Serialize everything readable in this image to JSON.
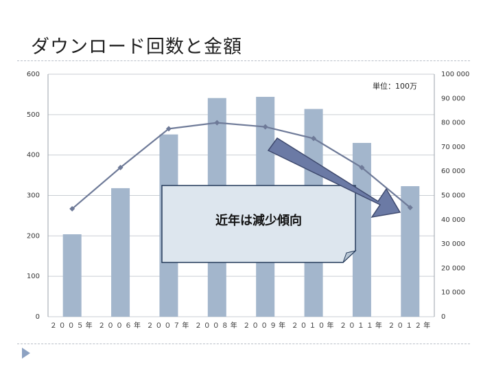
{
  "slide": {
    "title": "ダウンロード回数と金額"
  },
  "chart_data": {
    "type": "bar",
    "categories": [
      "２００５年",
      "２００６年",
      "２００７年",
      "２００８年",
      "２００９年",
      "２０１０年",
      "２０１１年",
      "２０１２年"
    ],
    "series": [
      {
        "type": "bar",
        "axis": "left",
        "values": [
          204,
          318,
          451,
          541,
          544,
          514,
          430,
          323
        ],
        "color": "#a3b6cc"
      },
      {
        "type": "line",
        "axis": "right",
        "values": [
          44500,
          61500,
          77500,
          80000,
          78300,
          73500,
          61500,
          45000
        ],
        "color": "#6e7a98"
      }
    ],
    "ylim_left": [
      0,
      600
    ],
    "ylim_right": [
      0,
      100000
    ],
    "yticks_left": [
      "0",
      "100",
      "200",
      "300",
      "400",
      "500",
      "600"
    ],
    "yticks_right": [
      "0",
      "10 000",
      "20 000",
      "30 000",
      "40 000",
      "50 000",
      "60 000",
      "70 000",
      "80 000",
      "90 000",
      "100 000"
    ],
    "unit_label": "単位：100万",
    "annotation": "近年は減少傾向",
    "grid": true
  }
}
